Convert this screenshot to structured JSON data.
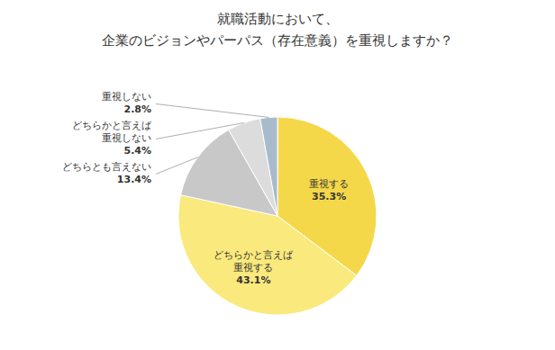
{
  "chart_data": {
    "type": "pie",
    "title": "就職活動において、",
    "subtitle": "企業のビジョンやパーパス（存在意義）を重視しますか？",
    "categories": [
      "重視する",
      "どちらかと言えば\n重視する",
      "どちらとも言えない",
      "どちらかと言えば\n重視しない",
      "重視しない"
    ],
    "values": [
      35.3,
      43.1,
      13.4,
      5.4,
      2.8
    ],
    "value_labels": [
      "35.3%",
      "43.1%",
      "13.4%",
      "5.4%",
      "2.8%"
    ],
    "colors": [
      "#F5D84A",
      "#FAE97C",
      "#C8C8C8",
      "#DCDCDC",
      "#A8BBCC"
    ],
    "data_labels": true
  }
}
